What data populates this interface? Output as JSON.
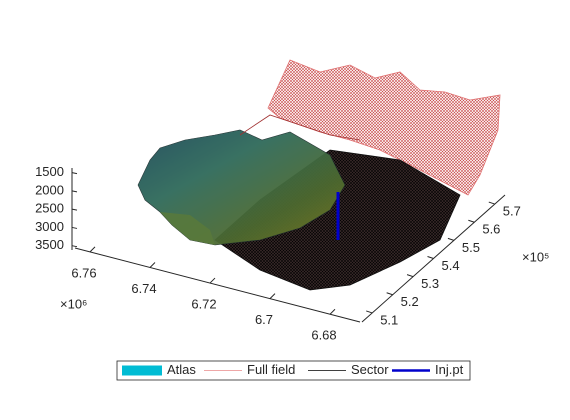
{
  "chart_data": {
    "type": "surface3d",
    "x_exponent": "×10⁶",
    "y_exponent": "×10⁵",
    "xlim": [
      6.765,
      6.67
    ],
    "xticks": [
      6.76,
      6.74,
      6.72,
      6.7,
      6.68
    ],
    "ylim": [
      5.05,
      5.75
    ],
    "yticks": [
      5.1,
      5.2,
      5.3,
      5.4,
      5.5,
      5.6,
      5.7
    ],
    "zlim": [
      1400,
      3700
    ],
    "zticks": [
      1500,
      2000,
      2500,
      3000,
      3500
    ],
    "legend": [
      {
        "name": "Atlas",
        "color": "#00bcd4",
        "style": "patch"
      },
      {
        "name": "Full field",
        "color": "#e88a8a",
        "style": "line"
      },
      {
        "name": "Sector",
        "color": "#000000",
        "style": "line"
      },
      {
        "name": "Inj.pt",
        "color": "#0000cc",
        "style": "thick"
      }
    ]
  }
}
